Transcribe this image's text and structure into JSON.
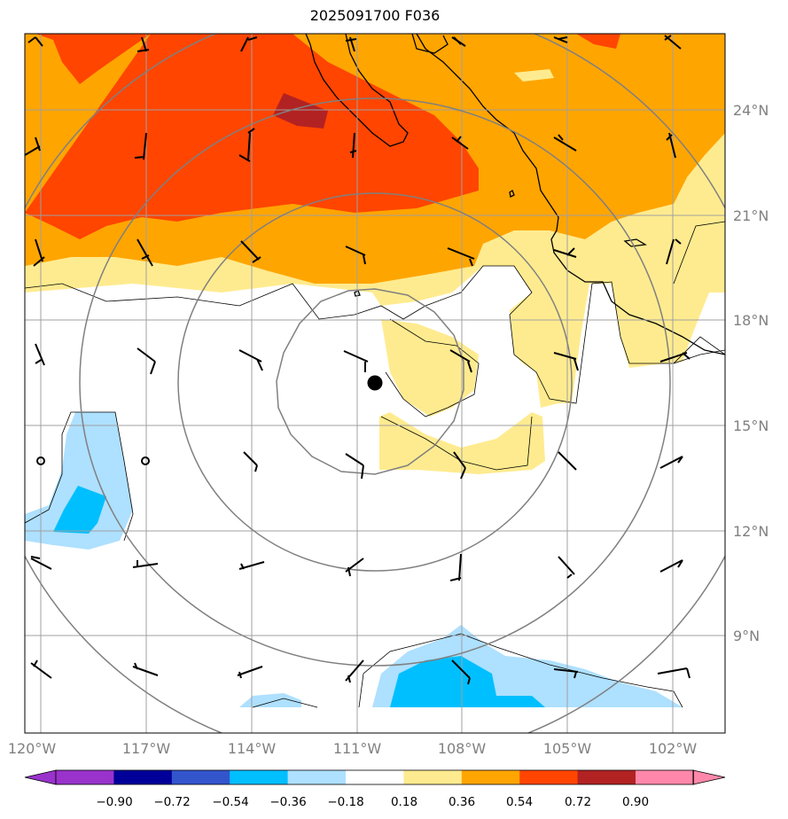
{
  "title": "2025091700 F036",
  "map": {
    "lon_range": [
      -121,
      -101
    ],
    "lat_range": [
      6.5,
      26.5
    ],
    "lon_ticks": [
      -120,
      -117,
      -114,
      -111,
      -108,
      -105,
      -102
    ],
    "lon_labels": [
      "120°W",
      "117°W",
      "114°W",
      "111°W",
      "108°W",
      "105°W",
      "102°W"
    ],
    "lat_ticks": [
      9,
      12,
      15,
      18,
      21,
      24
    ],
    "lat_labels": [
      "9°N",
      "12°N",
      "15°N",
      "18°N",
      "21°N",
      "24°N"
    ],
    "storm_center": {
      "lon": -110.5,
      "lat": 16.2
    },
    "range_rings_deg": [
      2.8,
      5.6,
      8.4,
      11.2
    ]
  },
  "colorbar": {
    "levels": [
      "−0.90",
      "−0.72",
      "−0.54",
      "−0.36",
      "−0.18",
      "0.18",
      "0.36",
      "0.54",
      "0.72",
      "0.90"
    ],
    "colors": [
      "#9933cc",
      "#000099",
      "#3355cc",
      "#00bfff",
      "#aee0ff",
      "#ffffff",
      "#ffeb8f",
      "#ffa500",
      "#ff4500",
      "#b22222",
      "#ff88aa"
    ]
  },
  "colors": {
    "pos1": "#ffeb8f",
    "pos2": "#ffa500",
    "pos3": "#ff4500",
    "pos4": "#b22222",
    "neg1": "#aee0ff",
    "neg2": "#00bfff"
  }
}
